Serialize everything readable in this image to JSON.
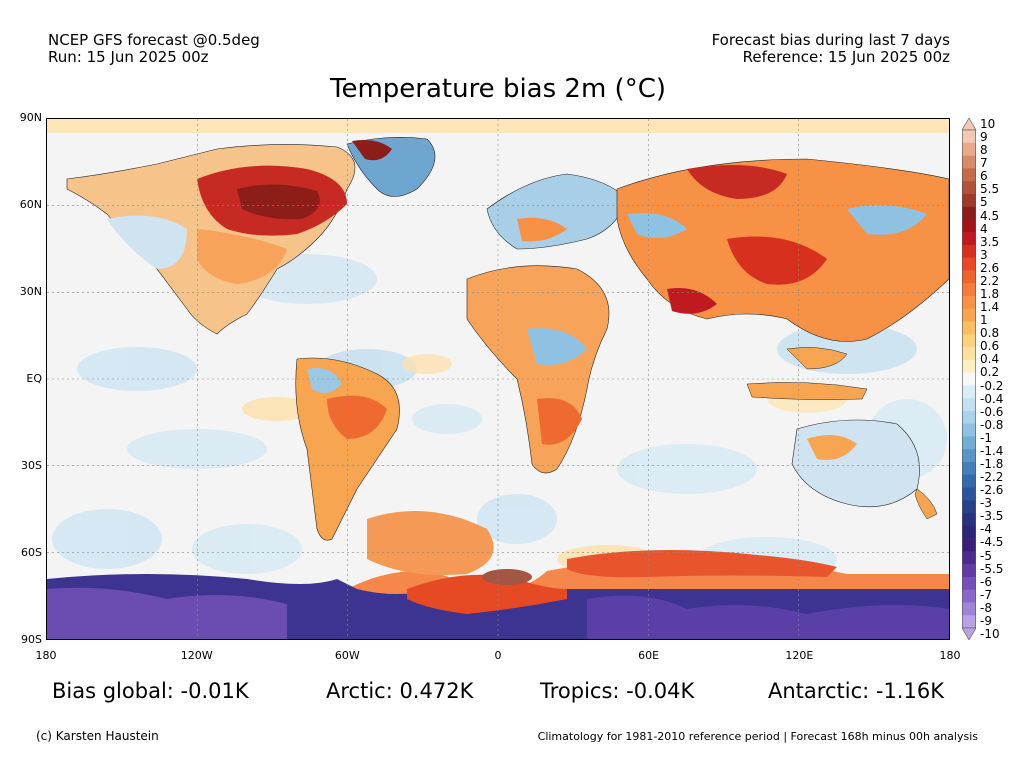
{
  "header": {
    "left_line1": "NCEP GFS forecast @0.5deg",
    "left_line2": "Run: 15 Jun 2025 00z",
    "right_line1": "Forecast bias during last 7 days",
    "right_line2": "Reference: 15 Jun 2025 00z",
    "title": "Temperature bias 2m (°C)"
  },
  "map": {
    "lat_labels": [
      "90N",
      "60N",
      "30N",
      "EQ",
      "30S",
      "60S",
      "90S"
    ],
    "lon_labels": [
      "180",
      "120W",
      "60W",
      "0",
      "60E",
      "120E",
      "180"
    ],
    "colorbar": {
      "labels": [
        "10",
        "9",
        "8",
        "7",
        "6",
        "5.5",
        "5",
        "4.5",
        "4",
        "3.5",
        "3",
        "2.6",
        "2.2",
        "1.8",
        "1.4",
        "1",
        "0.8",
        "0.6",
        "0.4",
        "0.2",
        "-0.2",
        "-0.4",
        "-0.6",
        "-0.8",
        "-1",
        "-1.4",
        "-1.8",
        "-2.2",
        "-2.6",
        "-3",
        "-3.5",
        "-4",
        "-4.5",
        "-5",
        "-5.5",
        "-6",
        "-7",
        "-8",
        "-9",
        "-10"
      ],
      "colors": [
        "#f3c8b4",
        "#e9a98d",
        "#d98a6a",
        "#c46b4c",
        "#b1533a",
        "#9d3b2a",
        "#8a1f1a",
        "#a3141a",
        "#c0191f",
        "#d8301f",
        "#e84a27",
        "#ef6330",
        "#f47b3b",
        "#f69146",
        "#f8a552",
        "#fbbd63",
        "#fcd07c",
        "#fde29d",
        "#fef0c4",
        "#f7f7f7",
        "#dcecf6",
        "#c4e0f0",
        "#aad2ea",
        "#8fc2e2",
        "#72add6",
        "#5896c9",
        "#437fba",
        "#336aab",
        "#2a559c",
        "#25428d",
        "#273282",
        "#2b2478",
        "#3a1e7a",
        "#4d2a8e",
        "#613ba4",
        "#7650b8",
        "#8b67c9",
        "#a183d8",
        "#b9a2e6"
      ]
    }
  },
  "stats": {
    "global": "Bias global: -0.01K",
    "arctic": "Arctic: 0.472K",
    "tropics": "Tropics: -0.04K",
    "antarctic": "Antarctic: -1.16K"
  },
  "footer": {
    "credit": "(c) Karsten Haustein",
    "note": "Climatology for 1981-2010 reference period | Forecast 168h minus 00h analysis"
  }
}
